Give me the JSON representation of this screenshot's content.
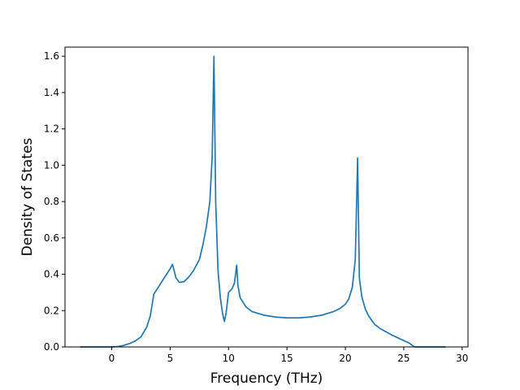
{
  "chart_data": {
    "type": "line",
    "title": "",
    "xlabel": "Frequency (THz)",
    "ylabel": "Density of States",
    "xlim": [
      -4.0,
      30.5
    ],
    "ylim": [
      0.0,
      1.65
    ],
    "xticks": [
      0,
      5,
      10,
      15,
      20,
      25,
      30
    ],
    "xtick_labels": [
      "0",
      "5",
      "10",
      "15",
      "20",
      "25",
      "30"
    ],
    "yticks": [
      0.0,
      0.2,
      0.4,
      0.6,
      0.8,
      1.0,
      1.2,
      1.4,
      1.6
    ],
    "ytick_labels": [
      "0.0",
      "0.2",
      "0.4",
      "0.6",
      "0.8",
      "1.0",
      "1.2",
      "1.4",
      "1.6"
    ],
    "grid": false,
    "series": [
      {
        "color": "#1f77b4",
        "x": [
          -2.7,
          -1.0,
          0.0,
          0.5,
          1.0,
          1.5,
          2.0,
          2.5,
          3.0,
          3.3,
          3.6,
          4.0,
          4.5,
          5.0,
          5.2,
          5.5,
          5.8,
          6.2,
          6.6,
          7.0,
          7.5,
          7.8,
          8.1,
          8.4,
          8.6,
          8.75,
          8.9,
          9.1,
          9.3,
          9.5,
          9.65,
          9.8,
          10.0,
          10.3,
          10.5,
          10.7,
          10.8,
          11.0,
          11.5,
          12.0,
          13.0,
          14.0,
          15.0,
          16.0,
          17.0,
          18.0,
          19.0,
          19.5,
          20.0,
          20.3,
          20.6,
          20.85,
          21.05,
          21.2,
          21.4,
          21.7,
          22.0,
          22.5,
          23.0,
          24.0,
          25.0,
          25.5,
          25.8,
          26.0,
          27.0,
          28.6
        ],
        "y": [
          0.0,
          0.0,
          0.0,
          0.002,
          0.008,
          0.018,
          0.032,
          0.055,
          0.11,
          0.17,
          0.29,
          0.33,
          0.38,
          0.43,
          0.455,
          0.38,
          0.355,
          0.36,
          0.385,
          0.42,
          0.48,
          0.56,
          0.66,
          0.8,
          1.05,
          1.6,
          0.8,
          0.42,
          0.27,
          0.18,
          0.14,
          0.19,
          0.3,
          0.32,
          0.35,
          0.45,
          0.34,
          0.27,
          0.22,
          0.195,
          0.175,
          0.165,
          0.16,
          0.16,
          0.165,
          0.175,
          0.195,
          0.21,
          0.235,
          0.265,
          0.33,
          0.48,
          1.04,
          0.38,
          0.28,
          0.21,
          0.17,
          0.125,
          0.1,
          0.065,
          0.035,
          0.02,
          0.005,
          0.0,
          0.0,
          0.0
        ]
      }
    ]
  }
}
